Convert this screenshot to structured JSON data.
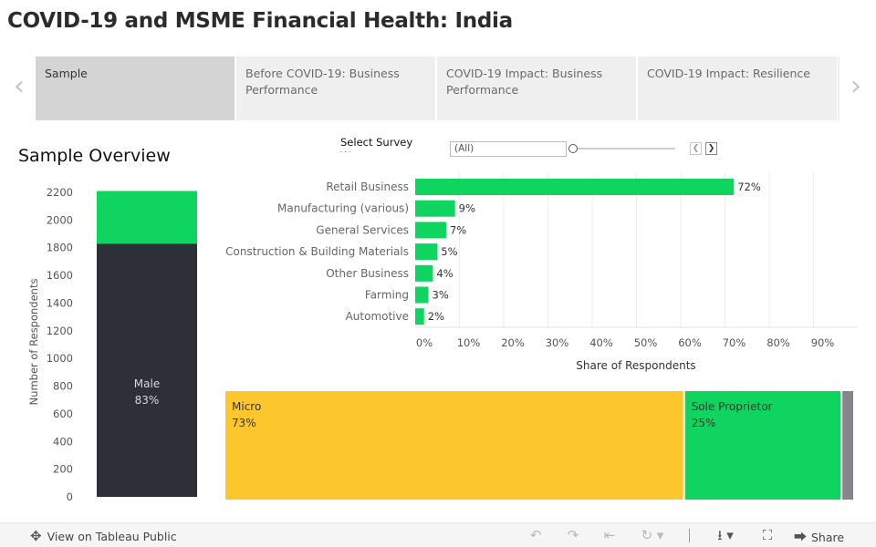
{
  "title": "COVID-19 and MSME Financial Health: India",
  "tabs": [
    {
      "label": "Sample",
      "active": true
    },
    {
      "label": "Before COVID-19: Business Performance",
      "active": false
    },
    {
      "label": "COVID-19 Impact: Business Performance",
      "active": false
    },
    {
      "label": "COVID-19 Impact: Resilience",
      "active": false
    }
  ],
  "section_title": "Sample Overview",
  "filter": {
    "label": "Select Survey W",
    "value": "(All)"
  },
  "icons": {
    "nav_prev": "chevron-left-icon",
    "nav_next": "chevron-right-icon",
    "step_prev": "step-back-icon",
    "step_next": "step-forward-icon",
    "tableau": "tableau-logo-icon",
    "undo": "undo-icon",
    "redo": "redo-icon",
    "revert": "revert-icon",
    "refresh": "refresh-icon",
    "download": "download-icon",
    "fullscreen": "fullscreen-icon",
    "share": "share-icon"
  },
  "colors": {
    "green": "#0fd45f",
    "dark": "#2e3039",
    "yellow": "#fcc72d",
    "gray": "#85858d",
    "tab_active": "#d4d4d4",
    "tab_inactive": "#efefef"
  },
  "chart_data": [
    {
      "type": "bar",
      "stacked": true,
      "ylabel": "Number of Respondents",
      "yticks": [
        0,
        200,
        400,
        600,
        800,
        1000,
        1200,
        1400,
        1600,
        1800,
        2000,
        2200
      ],
      "ylim": [
        0,
        2250
      ],
      "series": [
        {
          "name": "Male",
          "value": 1830,
          "label": "Male",
          "share_label": "83%",
          "color": "#2e3039"
        },
        {
          "name": "",
          "value": 380,
          "color": "#0fd45f"
        }
      ]
    },
    {
      "type": "bar",
      "orientation": "horizontal",
      "categories": [
        "Retail Business",
        "Manufacturing (various)",
        "General Services",
        "Construction & Building Materials",
        "Other Business",
        "Farming",
        "Automotive"
      ],
      "values": [
        72,
        9,
        7,
        5,
        4,
        3,
        2
      ],
      "value_labels": [
        "72%",
        "9%",
        "7%",
        "5%",
        "4%",
        "3%",
        "2%"
      ],
      "xticks": [
        "0%",
        "10%",
        "20%",
        "30%",
        "40%",
        "50%",
        "60%",
        "70%",
        "80%",
        "90%"
      ],
      "xlim": [
        0,
        100
      ],
      "xlabel": "Share of Respondents",
      "color": "#0fd45f"
    },
    {
      "type": "bar",
      "stacked": true,
      "orientation": "horizontal",
      "segments": [
        {
          "label": "Micro",
          "share_label": "73%",
          "value": 73,
          "color": "#fcc72d"
        },
        {
          "label": "Sole Proprietor",
          "share_label": "25%",
          "value": 25,
          "color": "#0fd45f"
        },
        {
          "label": "",
          "share_label": "",
          "value": 2,
          "color": "#85858d"
        }
      ]
    }
  ],
  "footer": {
    "link": "View on Tableau Public",
    "share": "Share"
  }
}
